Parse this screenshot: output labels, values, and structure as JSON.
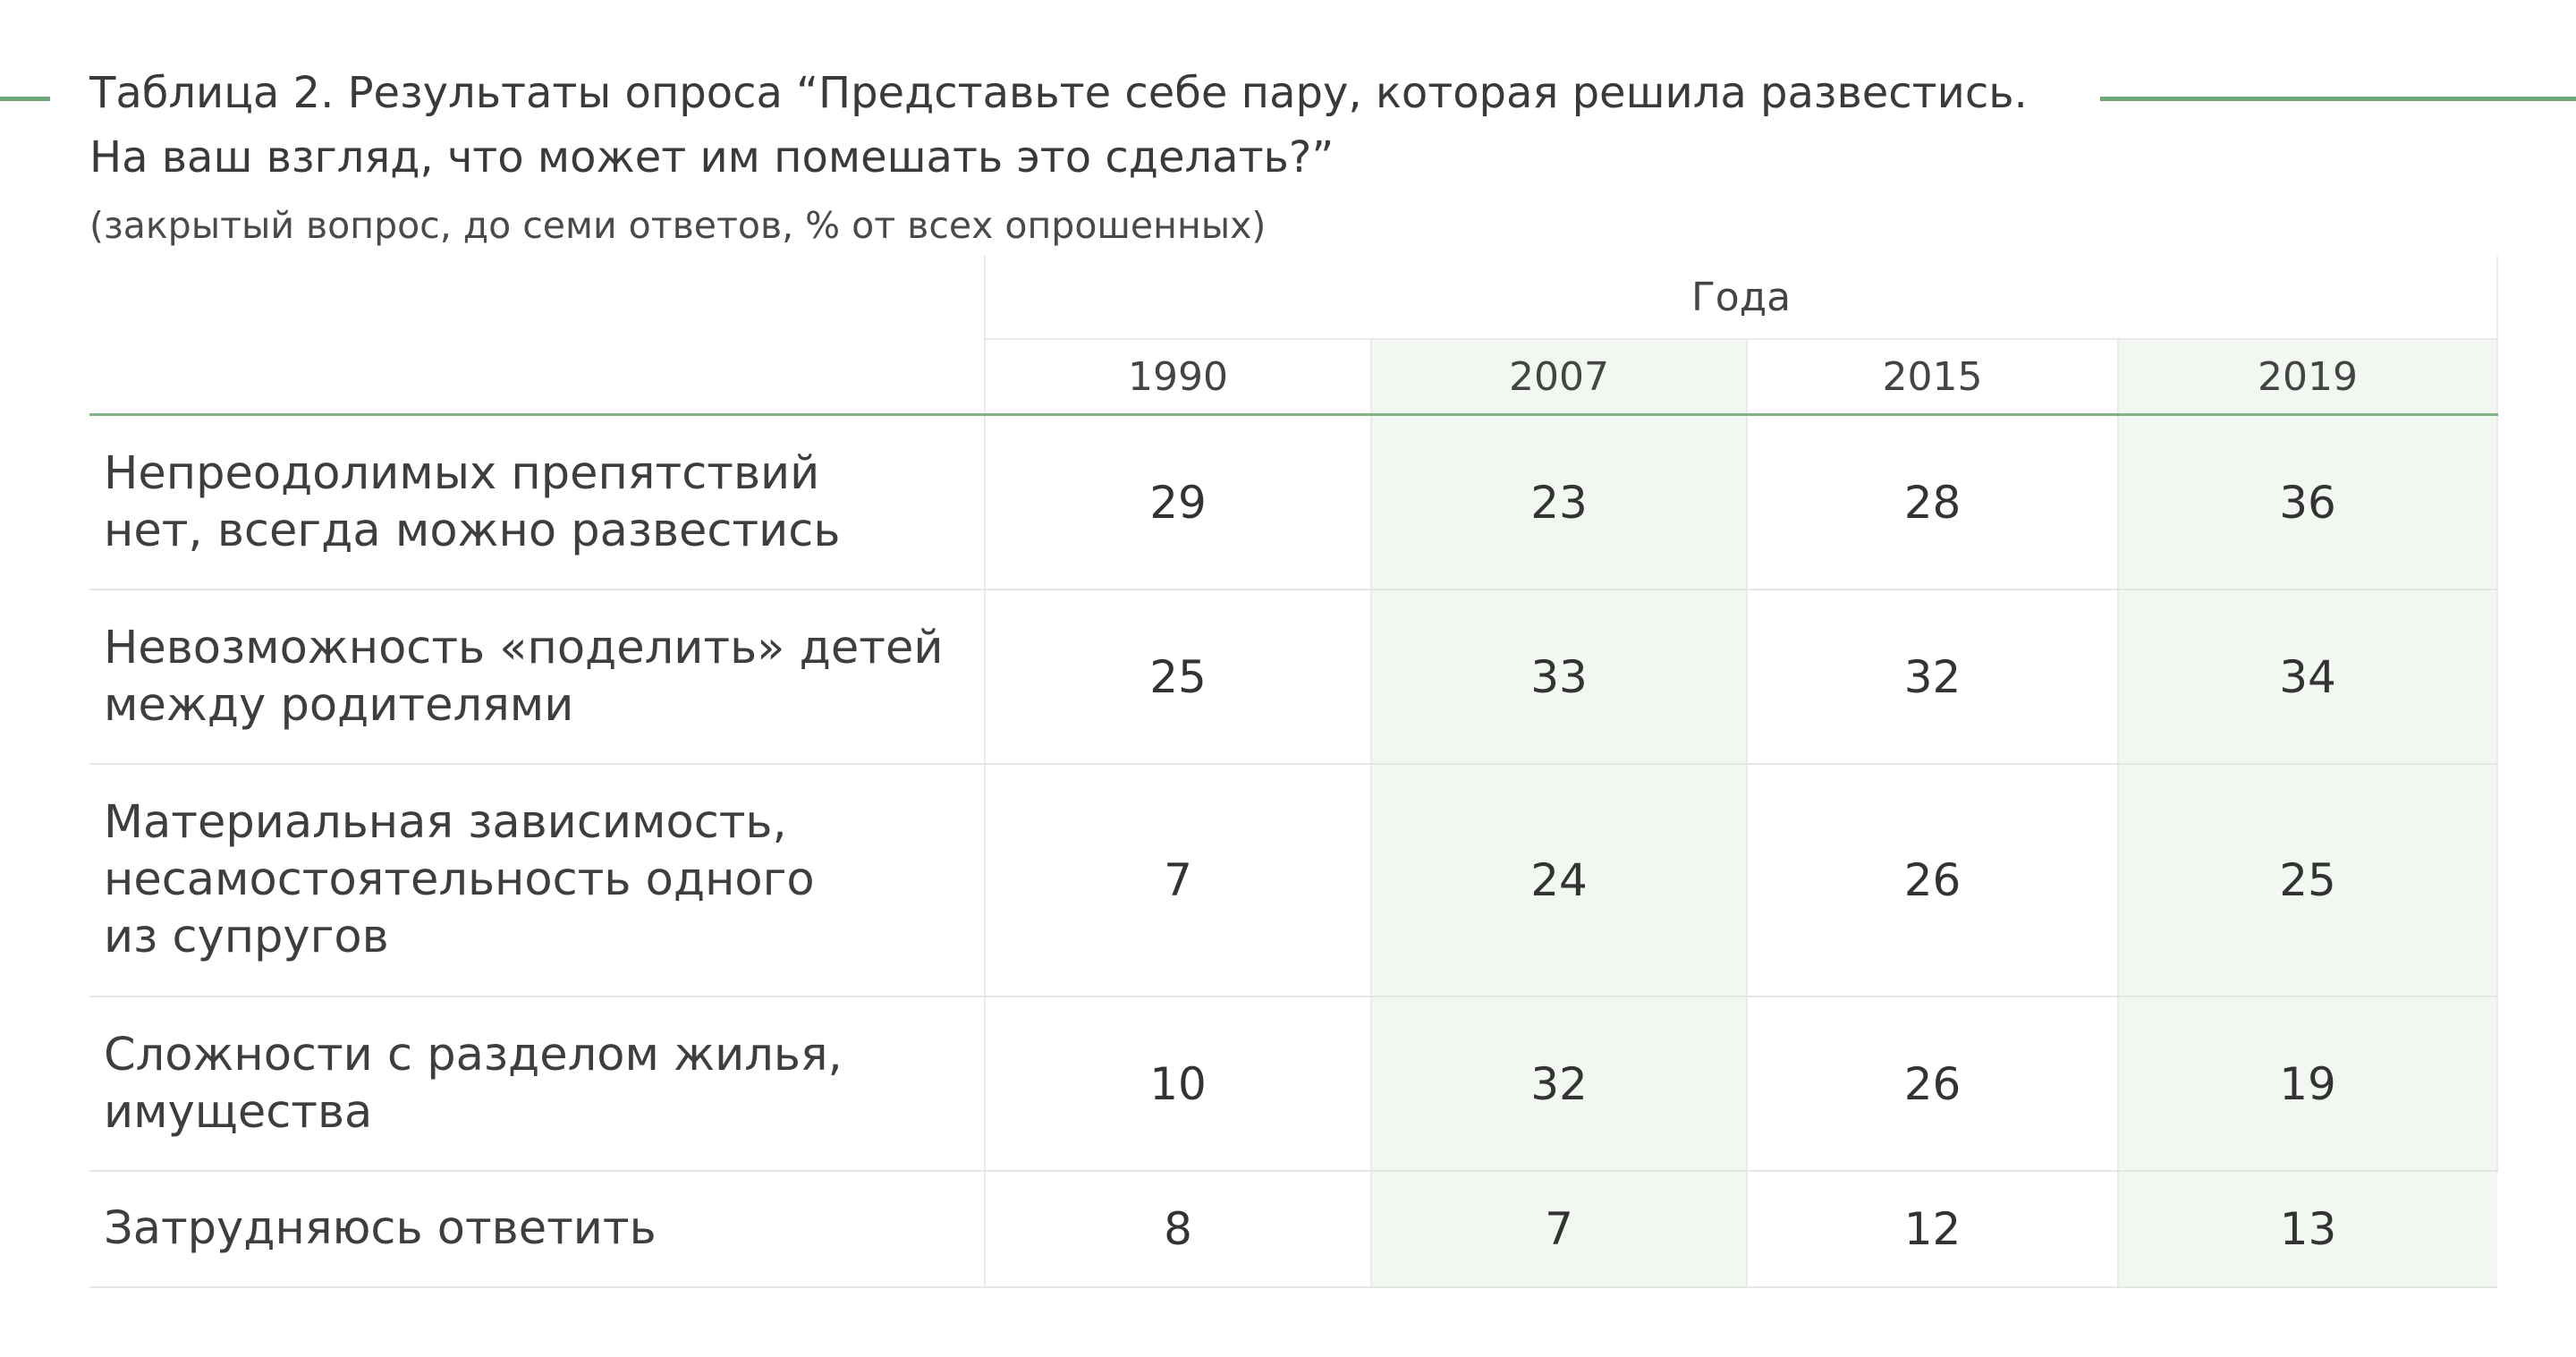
{
  "title": {
    "line1": "Таблица 2. Результаты опроса “Представьте себе пару, которая решила развестись.",
    "line2": "На ваш взгляд, что может им помешать это сделать?”"
  },
  "subtitle": "(закрытый вопрос, до семи ответов, % от всех опрошенных)",
  "colors": {
    "accent_line": "#6fa876",
    "shaded_column": "#f2f7f1"
  },
  "table": {
    "group_header": "Года",
    "years": [
      "1990",
      "2007",
      "2015",
      "2019"
    ],
    "rows": [
      {
        "label_lines": [
          "Непреодолимых препятствий",
          "нет, всегда можно развестись"
        ],
        "values": [
          "29",
          "23",
          "28",
          "36"
        ]
      },
      {
        "label_lines": [
          "Невозможность «поделить» детей",
          "между родителями"
        ],
        "values": [
          "25",
          "33",
          "32",
          "34"
        ]
      },
      {
        "label_lines": [
          "Материальная зависимость,",
          "несамостоятельность одного",
          "из супругов"
        ],
        "values": [
          "7",
          "24",
          "26",
          "25"
        ]
      },
      {
        "label_lines": [
          "Сложности с разделом жилья,",
          "имущества"
        ],
        "values": [
          "10",
          "32",
          "26",
          "19"
        ]
      },
      {
        "label_lines": [
          "Затрудняюсь ответить"
        ],
        "values": [
          "8",
          "7",
          "12",
          "13"
        ]
      }
    ]
  }
}
